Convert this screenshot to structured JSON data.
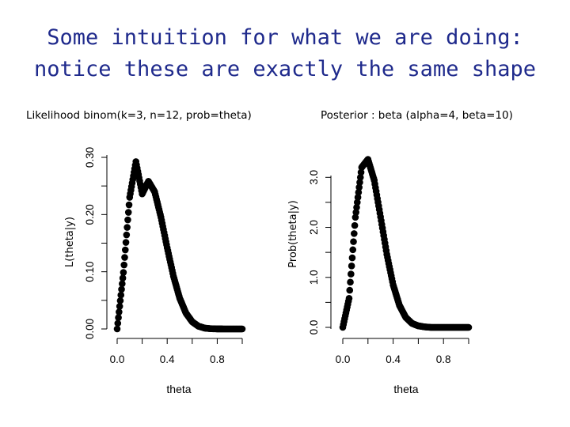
{
  "slide": {
    "title_line_1": "Some intuition for what we are doing:",
    "title_line_2": "notice these are exactly the same shape",
    "title_color": "#1f2a8c"
  },
  "chart_data": [
    {
      "type": "scatter",
      "title": "Likelihood binom(k=3, n=12, prob=theta)",
      "xlabel": "theta",
      "ylabel": "L(theta|y)",
      "xlim": [
        0,
        1
      ],
      "ylim": [
        0,
        0.3
      ],
      "x_ticks": [
        0.0,
        0.4,
        0.8
      ],
      "x_tick_labels": [
        "0.0",
        "0.4",
        "0.8"
      ],
      "y_ticks": [
        0.0,
        0.1,
        0.2,
        0.3
      ],
      "y_tick_labels": [
        "0.00",
        "0.10",
        "0.20",
        "0.30"
      ],
      "grid": false,
      "marker": "filled-circle",
      "series": [
        {
          "x": [
            0.0,
            0.05,
            0.1,
            0.15,
            0.2,
            0.25,
            0.3,
            0.35,
            0.4,
            0.45,
            0.5,
            0.55,
            0.6,
            0.65,
            0.7,
            0.75,
            0.8,
            0.85,
            0.9,
            0.95,
            1.0
          ],
          "values": [
            0.0,
            0.0988,
            0.2301,
            0.2925,
            0.2362,
            0.2581,
            0.2397,
            0.1954,
            0.1419,
            0.0923,
            0.0537,
            0.0277,
            0.0125,
            0.0048,
            0.0015,
            0.0004,
            0.0001,
            0.0,
            0.0,
            0.0,
            0.0
          ]
        }
      ]
    },
    {
      "type": "scatter",
      "title": "Posterior : beta (alpha=4, beta=10)",
      "xlabel": "theta",
      "ylabel": "Prob(theta|y)",
      "xlim": [
        0,
        1
      ],
      "ylim": [
        0,
        3.4
      ],
      "x_ticks": [
        0.0,
        0.4,
        0.8
      ],
      "x_tick_labels": [
        "0.0",
        "0.4",
        "0.8"
      ],
      "y_ticks": [
        0.0,
        1.0,
        2.0,
        3.0
      ],
      "y_tick_labels": [
        "0.0",
        "1.0",
        "2.0",
        "3.0"
      ],
      "grid": false,
      "marker": "filled-circle",
      "series": [
        {
          "x": [
            0.0,
            0.05,
            0.1,
            0.15,
            0.2,
            0.25,
            0.3,
            0.35,
            0.4,
            0.45,
            0.5,
            0.55,
            0.6,
            0.65,
            0.7,
            0.75,
            0.8,
            0.85,
            0.9,
            0.95,
            1.0
          ],
          "values": [
            0.0,
            0.58,
            2.2,
            3.2,
            3.36,
            2.94,
            2.21,
            1.46,
            0.85,
            0.44,
            0.2,
            0.08,
            0.03,
            0.01,
            0.0,
            0.0,
            0.0,
            0.0,
            0.0,
            0.0,
            0.0
          ]
        }
      ]
    }
  ]
}
